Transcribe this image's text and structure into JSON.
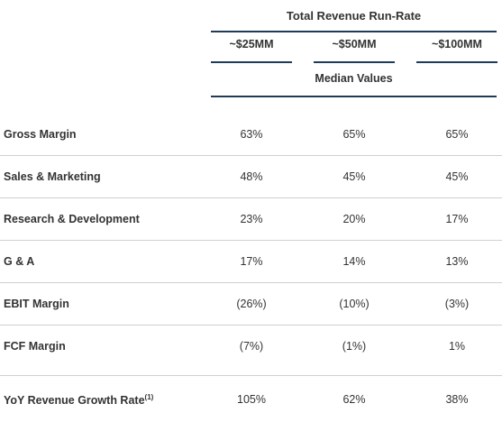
{
  "table": {
    "group_title": "Total Revenue Run-Rate",
    "columns": [
      "~$25MM",
      "~$50MM",
      "~$100MM"
    ],
    "subheader": "Median Values",
    "rows": [
      {
        "label": "Gross Margin",
        "values": [
          "63%",
          "65%",
          "65%"
        ]
      },
      {
        "label": "Sales & Marketing",
        "values": [
          "48%",
          "45%",
          "45%"
        ]
      },
      {
        "label": "Research & Development",
        "values": [
          "23%",
          "20%",
          "17%"
        ]
      },
      {
        "label": "G & A",
        "values": [
          "17%",
          "14%",
          "13%"
        ]
      },
      {
        "label": "EBIT Margin",
        "values": [
          "(26%)",
          "(10%)",
          "(3%)"
        ]
      },
      {
        "label": "FCF Margin",
        "values": [
          "(7%)",
          "(1%)",
          "1%"
        ]
      },
      {
        "label": "YoY Revenue Growth Rate",
        "footnote": "(1)",
        "values": [
          "105%",
          "62%",
          "38%"
        ]
      }
    ]
  }
}
